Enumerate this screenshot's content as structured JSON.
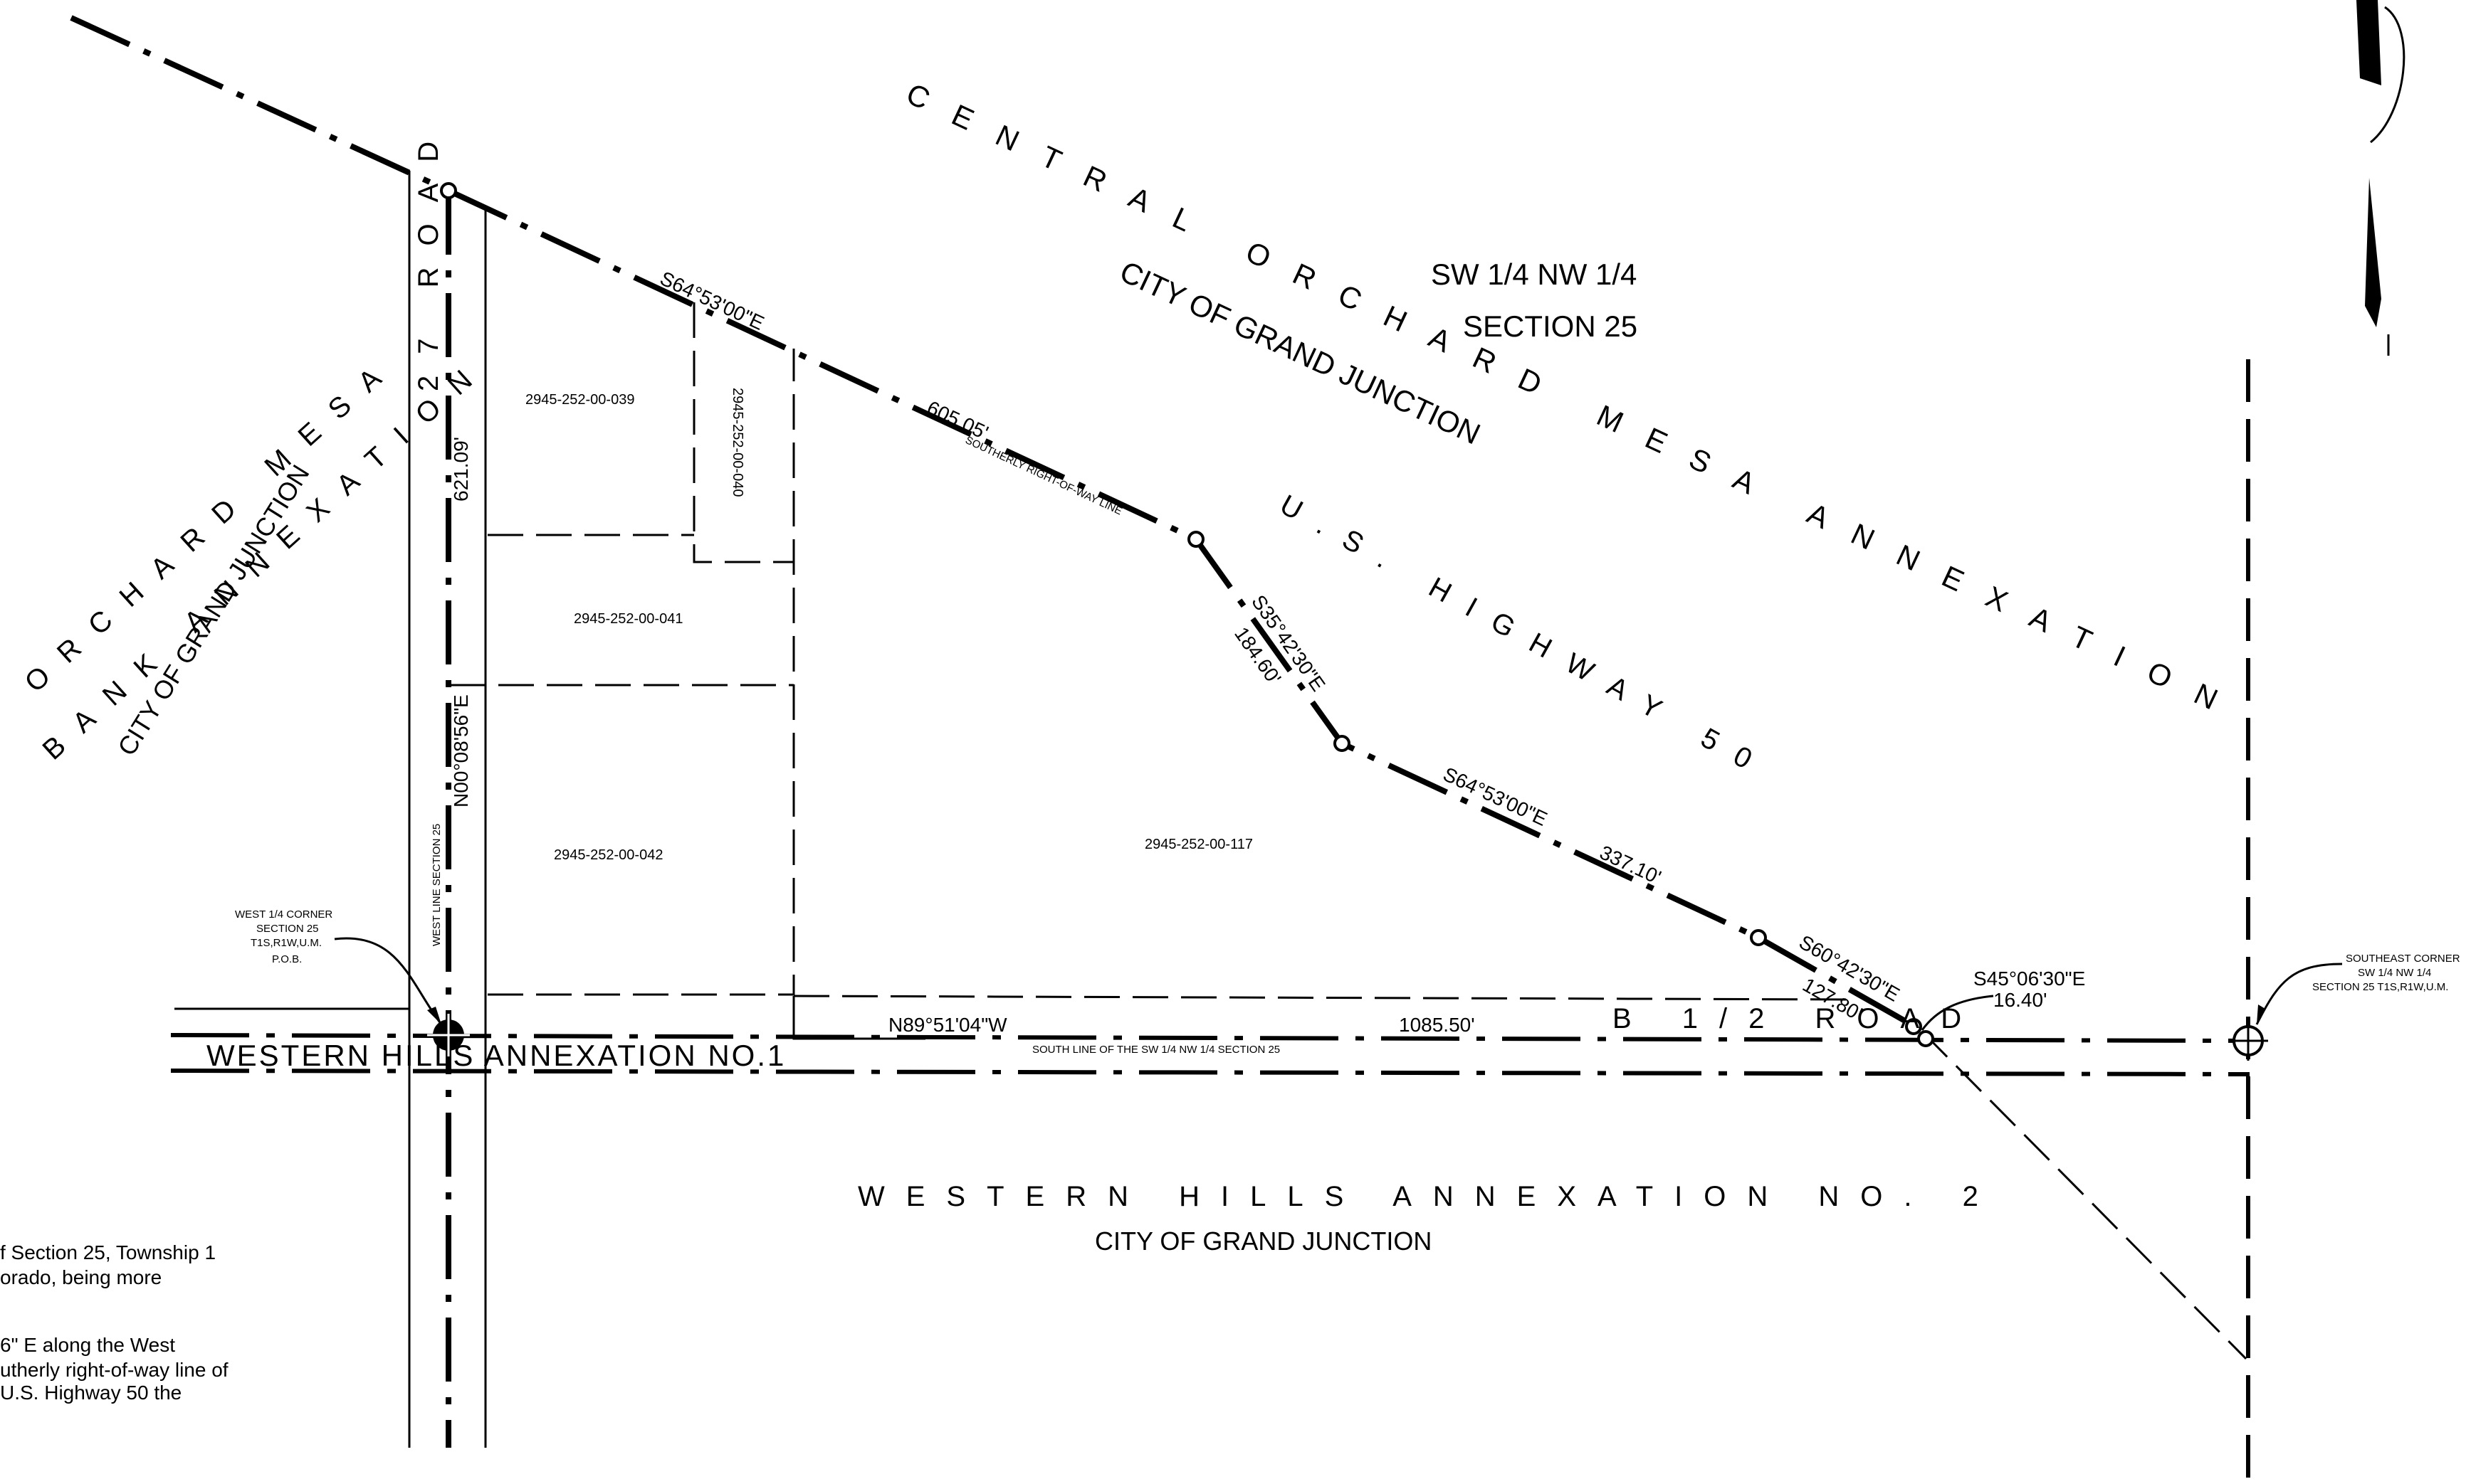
{
  "labels": {
    "central_1": "CENTRAL ORCHARD MESA ANNEXATION",
    "central_2": "CITY OF GRAND JUNCTION",
    "orchard_1": "ORCHARD MESA",
    "orchard_2": "BANK ANNEXATION",
    "orchard_3": "CITY OF GRAND JUNCTION",
    "quarter_1": "SW 1/4 NW 1/4",
    "quarter_2": "SECTION 25",
    "highway": "U.S. HIGHWAY 50",
    "road27": "27 ROAD",
    "b_road": "B 1/2 ROAD",
    "western1": "WESTERN HILLS ANNEXATION NO.1",
    "western2_1": "WESTERN HILLS ANNEXATION NO. 2",
    "western2_2": "CITY OF GRAND JUNCTION",
    "row_line": "SOUTHERLY RIGHT-OF-WAY LINE",
    "south_line": "SOUTH LINE OF THE SW 1/4 NW 1/4 SECTION 25",
    "west_line": "WEST LINE SECTION 25"
  },
  "parcels": {
    "p039": "2945-252-00-039",
    "p040": "2945-252-00-040",
    "p041": "2945-252-00-041",
    "p042": "2945-252-00-042",
    "p117": "2945-252-00-117"
  },
  "bearings": {
    "b1": "S64°53'00\"E",
    "d1": "605.05'",
    "b2": "S35°42'30\"E",
    "d2": "184.60'",
    "b3": "S64°53'00\"E",
    "d3": "337.10'",
    "b4": "S60°42'30\"E",
    "d4": "127.80'",
    "b5": "S45°06'30\"E",
    "d5": "16.40'",
    "west_bearing": "N00°08'56\"E",
    "west_dist": "621.09'",
    "south_bearing": "N89°51'04\"W",
    "south_dist": "1085.50'"
  },
  "corners": {
    "west_1": "WEST 1/4 CORNER",
    "west_2": "SECTION 25",
    "west_3": "T1S,R1W,U.M.",
    "west_4": "P.O.B.",
    "se_1": "SOUTHEAST CORNER",
    "se_2": "SW 1/4 NW 1/4",
    "se_3": "SECTION 25   T1S,R1W,U.M."
  },
  "description": {
    "line1": "f Section 25, Township 1",
    "line2": "orado, being more",
    "line3": "6\" E along the West",
    "line4": "utherly right-of-way line of",
    "line5": "U.S. Highway 50 the"
  }
}
